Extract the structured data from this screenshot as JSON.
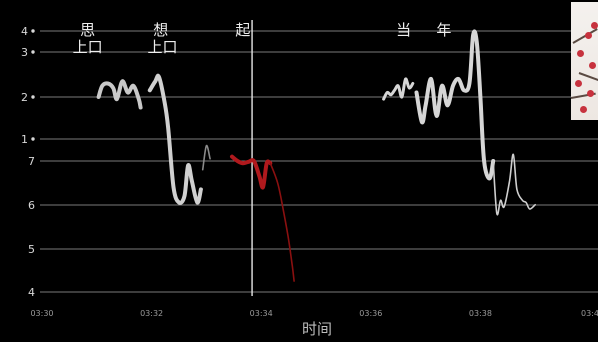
{
  "chart_data": {
    "type": "line",
    "title": "",
    "xlabel": "时间",
    "ylabel": "",
    "x_ticks": [
      "03:30",
      "03:32",
      "03:34",
      "03:36",
      "03:38",
      "03:4"
    ],
    "x_range_seconds": [
      210,
      240
    ],
    "grid": true,
    "legend": "none",
    "upper_tick_labels": [
      "4",
      "3",
      "2",
      "1"
    ],
    "lower_tick_labels": [
      "7",
      "6",
      "5",
      "4"
    ],
    "lower_range": [
      4,
      7
    ],
    "upper_note": "upper band tick labels carry a dot marker after the numeral",
    "lyrics": [
      {
        "text": "思",
        "t": 212.5
      },
      {
        "text": "想",
        "t": 216.5
      },
      {
        "text": "起",
        "t": 221.0
      },
      {
        "text": "当",
        "t": 229.8
      },
      {
        "text": "年",
        "t": 232.0
      }
    ],
    "sublyrics": [
      {
        "text": "上口",
        "t": 212.5
      },
      {
        "text": "上口",
        "t": 216.6
      }
    ],
    "cursor_t": 221.5,
    "series": [
      {
        "color": "#c8c8c8",
        "band": "upper",
        "stroke": "thick",
        "points": [
          [
            213.1,
            2.0
          ],
          [
            213.3,
            2.25
          ],
          [
            213.6,
            2.3
          ],
          [
            213.9,
            2.2
          ],
          [
            214.1,
            1.95
          ],
          [
            214.4,
            2.35
          ],
          [
            214.7,
            2.1
          ],
          [
            215.0,
            2.25
          ],
          [
            215.3,
            1.95
          ],
          [
            215.4,
            1.75
          ]
        ]
      },
      {
        "color": "#d0d0d0",
        "band": "mixed",
        "stroke": "thick",
        "points": [
          [
            215.9,
            2.15
          ],
          [
            216.2,
            2.35
          ],
          [
            216.4,
            2.45
          ],
          [
            216.7,
            1.9
          ],
          [
            216.9,
            1.3
          ],
          [
            217.2,
            6.4
          ],
          [
            217.5,
            6.05
          ],
          [
            217.8,
            6.2
          ],
          [
            218.0,
            6.9
          ],
          [
            218.2,
            6.55
          ],
          [
            218.5,
            6.05
          ],
          [
            218.7,
            6.35
          ]
        ]
      },
      {
        "color": "#8a8a8a",
        "band": "lower",
        "stroke": "thin",
        "points": [
          [
            218.8,
            6.8
          ],
          [
            219.0,
            7.35
          ],
          [
            219.2,
            7.05
          ]
        ]
      },
      {
        "color": "#b0191d",
        "band": "lower",
        "stroke": "thick",
        "points": [
          [
            220.4,
            7.1
          ],
          [
            220.7,
            7.0
          ],
          [
            221.0,
            6.95
          ],
          [
            221.3,
            6.98
          ],
          [
            221.6,
            7.0
          ],
          [
            221.9,
            6.65
          ],
          [
            222.1,
            6.4
          ],
          [
            222.3,
            6.95
          ],
          [
            222.5,
            6.95
          ]
        ]
      },
      {
        "color": "#8a1010",
        "band": "lower",
        "stroke": "thin",
        "points": [
          [
            222.5,
            6.95
          ],
          [
            222.9,
            6.5
          ],
          [
            223.2,
            5.9
          ],
          [
            223.5,
            5.2
          ],
          [
            223.7,
            4.6
          ],
          [
            223.8,
            4.25
          ]
        ]
      },
      {
        "color": "#d6d6d6",
        "band": "upper",
        "stroke": "medium",
        "points": [
          [
            228.7,
            1.95
          ],
          [
            228.9,
            2.1
          ],
          [
            229.1,
            2.05
          ],
          [
            229.3,
            2.15
          ],
          [
            229.5,
            2.25
          ],
          [
            229.7,
            2.0
          ],
          [
            229.9,
            2.4
          ],
          [
            230.1,
            2.2
          ],
          [
            230.3,
            2.3
          ]
        ]
      },
      {
        "color": "#d6d6d6",
        "band": "mixed",
        "stroke": "thick",
        "points": [
          [
            230.5,
            2.1
          ],
          [
            230.8,
            1.4
          ],
          [
            231.0,
            1.8
          ],
          [
            231.3,
            2.4
          ],
          [
            231.6,
            1.55
          ],
          [
            231.9,
            2.25
          ],
          [
            232.2,
            1.8
          ],
          [
            232.5,
            2.25
          ],
          [
            232.8,
            2.4
          ],
          [
            233.1,
            2.15
          ],
          [
            233.4,
            2.3
          ],
          [
            233.6,
            3.8
          ],
          [
            233.8,
            3.5
          ],
          [
            234.0,
            2.0
          ],
          [
            234.2,
            7.0
          ],
          [
            234.5,
            6.6
          ],
          [
            234.7,
            7.0
          ]
        ]
      },
      {
        "color": "#cfcfcf",
        "band": "lower",
        "stroke": "thin",
        "points": [
          [
            234.7,
            7.0
          ],
          [
            234.9,
            5.8
          ],
          [
            235.1,
            6.1
          ],
          [
            235.3,
            5.95
          ],
          [
            235.6,
            6.55
          ],
          [
            235.8,
            7.15
          ],
          [
            236.0,
            6.35
          ],
          [
            236.3,
            6.1
          ],
          [
            236.5,
            6.05
          ],
          [
            236.7,
            5.9
          ],
          [
            237.0,
            6.0
          ]
        ]
      }
    ]
  },
  "thumbnail": {
    "description_color": "#c7323e"
  }
}
